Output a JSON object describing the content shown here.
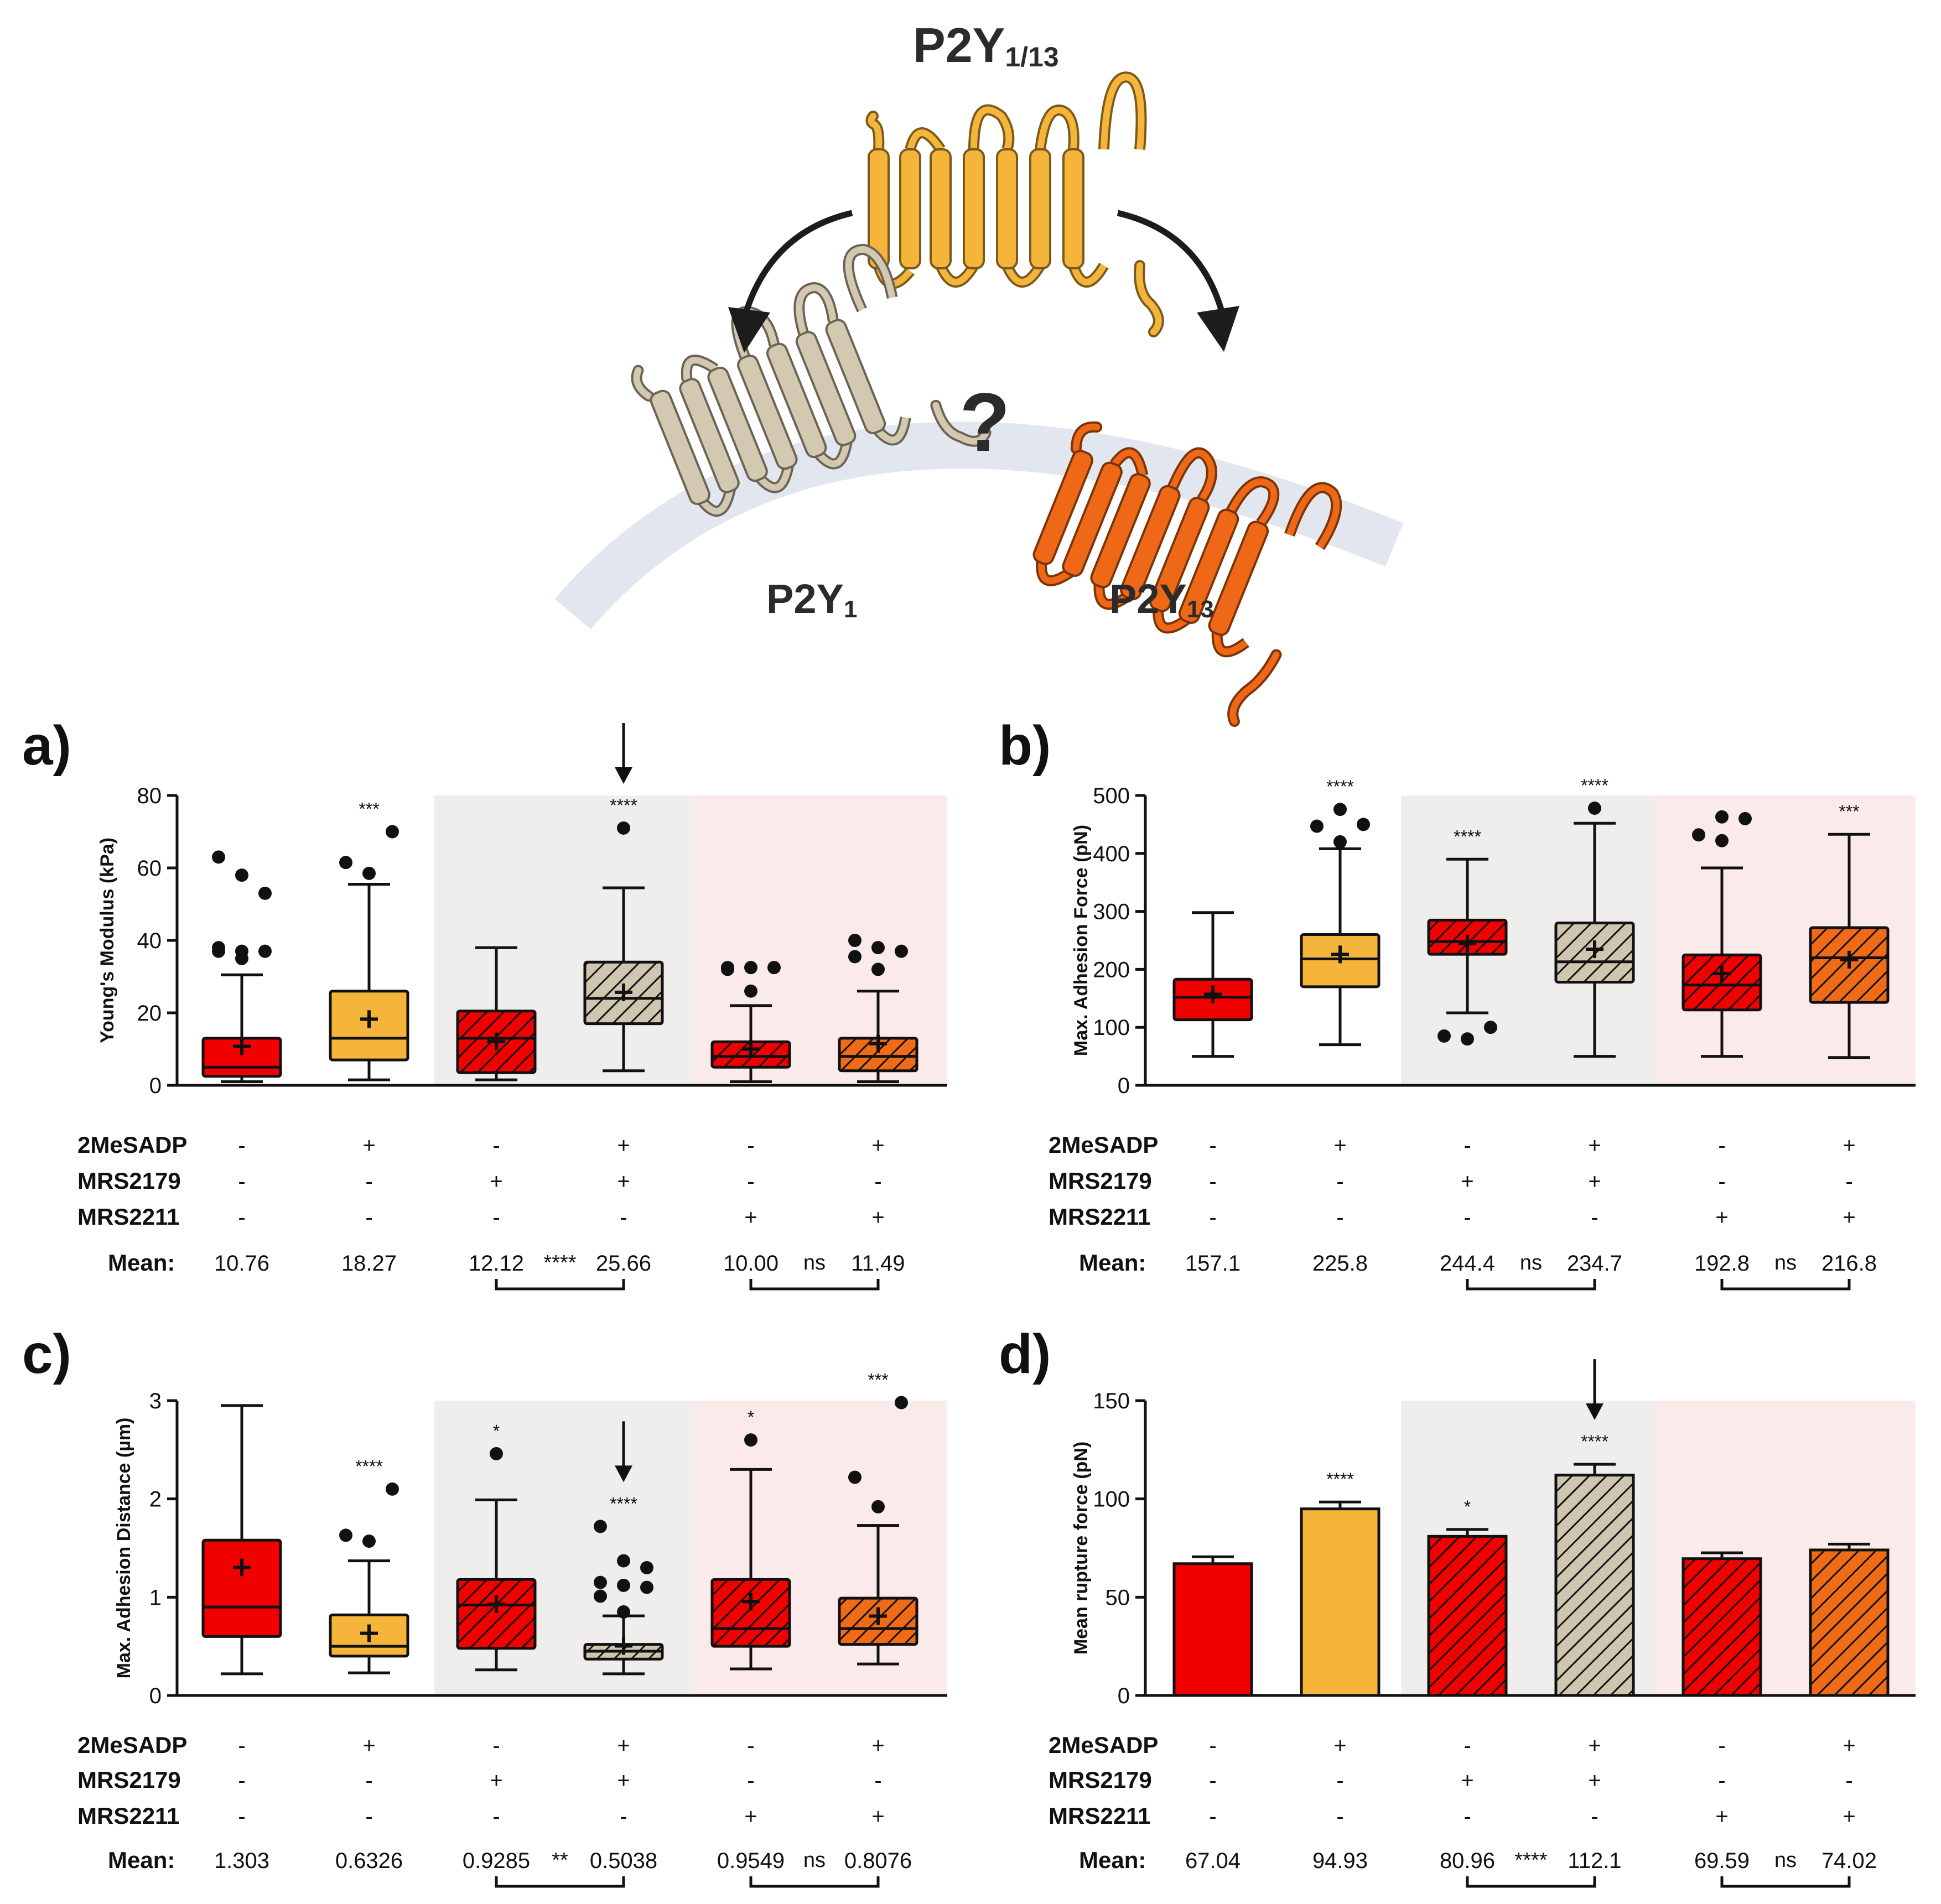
{
  "schematic": {
    "top_label": "P2Y",
    "top_sub": "1/13",
    "left_label": "P2Y",
    "left_sub": "1",
    "right_label": "P2Y",
    "right_sub": "13",
    "question": "?"
  },
  "colors": {
    "red": "#f20000",
    "yellow": "#f5b53b",
    "beige": "#cfc6b0",
    "orange": "#ef6b18",
    "shade_grey": "#efeeec",
    "shade_pink": "#fbeaea",
    "membrane": "#e2e7ef",
    "p2y_top": "#f5b53b",
    "p2y1": "#d3c9b1",
    "p2y13": "#ee6818"
  },
  "conditions": {
    "row_labels": [
      "2MeSADP",
      "MRS2179",
      "MRS2211"
    ],
    "values": [
      [
        "-",
        "+",
        "-",
        "+",
        "-",
        "+"
      ],
      [
        "-",
        "-",
        "+",
        "+",
        "-",
        "-"
      ],
      [
        "-",
        "-",
        "-",
        "-",
        "+",
        "+"
      ]
    ],
    "mean_label": "Mean:"
  },
  "chart_data": [
    {
      "panel": "a)",
      "type": "box",
      "ylabel": "Young's  Modulus  (kPa)",
      "ylim": [
        0,
        80
      ],
      "yticks": [
        0,
        20,
        40,
        60,
        80
      ],
      "fills": [
        "red",
        "yellow",
        "red",
        "beige",
        "red",
        "orange"
      ],
      "hatched": [
        false,
        false,
        true,
        true,
        true,
        true
      ],
      "boxes": [
        {
          "min": 1,
          "q1": 2.5,
          "median": 5,
          "q3": 13,
          "max": 30.5,
          "mean": 10.76,
          "outliers": [
            35,
            37,
            37,
            37,
            38,
            53,
            58,
            63
          ]
        },
        {
          "min": 1.5,
          "q1": 7,
          "median": 13,
          "q3": 26,
          "max": 55.5,
          "mean": 18.27,
          "outliers": [
            58.5,
            61.5,
            70
          ]
        },
        {
          "min": 1.5,
          "q1": 3.5,
          "median": 13,
          "q3": 20.5,
          "max": 38,
          "mean": 12.12,
          "outliers": []
        },
        {
          "min": 4,
          "q1": 17,
          "median": 24,
          "q3": 34,
          "max": 54.5,
          "mean": 25.66,
          "outliers": [
            71
          ]
        },
        {
          "min": 1,
          "q1": 5,
          "median": 8,
          "q3": 12,
          "max": 22,
          "mean": 10.0,
          "outliers": [
            26,
            32,
            32.5,
            32.5,
            32.5
          ]
        },
        {
          "min": 1,
          "q1": 4,
          "median": 8,
          "q3": 13,
          "max": 26,
          "mean": 11.49,
          "outliers": [
            32,
            35.5,
            37,
            38,
            40
          ]
        }
      ],
      "significance": [
        "",
        "***",
        "",
        "****",
        "",
        ""
      ],
      "arrow_over": 3,
      "means": [
        "10.76",
        "18.27",
        "12.12",
        "25.66",
        "10.00",
        "11.49"
      ],
      "pair_stats": [
        "****",
        "ns"
      ]
    },
    {
      "panel": "b)",
      "type": "box",
      "ylabel": "Max. Adhesion Force  (pN)",
      "ylim": [
        0,
        500
      ],
      "yticks": [
        0,
        100,
        200,
        300,
        400,
        500
      ],
      "fills": [
        "red",
        "yellow",
        "red",
        "beige",
        "red",
        "orange"
      ],
      "hatched": [
        false,
        false,
        true,
        true,
        true,
        true
      ],
      "boxes": [
        {
          "min": 50,
          "q1": 113,
          "median": 152,
          "q3": 183,
          "max": 298,
          "mean": 157.1,
          "outliers": []
        },
        {
          "min": 70,
          "q1": 170,
          "median": 218,
          "q3": 260,
          "max": 408,
          "mean": 225.8,
          "outliers": [
            420,
            447,
            450,
            476
          ]
        },
        {
          "min": 125,
          "q1": 226,
          "median": 248,
          "q3": 285,
          "max": 390,
          "mean": 244.4,
          "outliers": [
            80,
            85,
            100
          ]
        },
        {
          "min": 50,
          "q1": 178,
          "median": 213,
          "q3": 280,
          "max": 452,
          "mean": 234.7,
          "outliers": [
            478
          ]
        },
        {
          "min": 50,
          "q1": 130,
          "median": 173,
          "q3": 225,
          "max": 375,
          "mean": 192.8,
          "outliers": [
            422,
            432,
            460,
            463
          ]
        },
        {
          "min": 48,
          "q1": 143,
          "median": 220,
          "q3": 272,
          "max": 433,
          "mean": 216.8,
          "outliers": []
        }
      ],
      "significance": [
        "",
        "****",
        "****",
        "****",
        "",
        "***"
      ],
      "arrow_over": null,
      "means": [
        "157.1",
        "225.8",
        "244.4",
        "234.7",
        "192.8",
        "216.8"
      ],
      "pair_stats": [
        "ns",
        "ns"
      ]
    },
    {
      "panel": "c)",
      "type": "box",
      "ylabel": "Max. Adhesion Distance  (µm)",
      "ylim": [
        0,
        3
      ],
      "yticks": [
        0,
        1,
        2,
        3
      ],
      "fills": [
        "red",
        "yellow",
        "red",
        "beige",
        "red",
        "orange"
      ],
      "hatched": [
        false,
        false,
        true,
        true,
        true,
        true
      ],
      "boxes": [
        {
          "min": 0.22,
          "q1": 0.6,
          "median": 0.9,
          "q3": 1.58,
          "max": 2.95,
          "mean": 1.303,
          "outliers": []
        },
        {
          "min": 0.23,
          "q1": 0.4,
          "median": 0.5,
          "q3": 0.82,
          "max": 1.37,
          "mean": 0.6326,
          "outliers": [
            1.57,
            1.63,
            2.1
          ]
        },
        {
          "min": 0.26,
          "q1": 0.48,
          "median": 0.92,
          "q3": 1.18,
          "max": 1.99,
          "mean": 0.9285,
          "outliers": [
            2.46
          ]
        },
        {
          "min": 0.22,
          "q1": 0.37,
          "median": 0.45,
          "q3": 0.52,
          "max": 0.81,
          "mean": 0.5038,
          "outliers": [
            0.85,
            1.01,
            1.1,
            1.12,
            1.15,
            1.3,
            1.37,
            1.72
          ]
        },
        {
          "min": 0.27,
          "q1": 0.5,
          "median": 0.68,
          "q3": 1.18,
          "max": 2.3,
          "mean": 0.9549,
          "outliers": [
            2.6
          ]
        },
        {
          "min": 0.32,
          "q1": 0.52,
          "median": 0.68,
          "q3": 0.99,
          "max": 1.73,
          "mean": 0.8076,
          "outliers": [
            1.92,
            2.22,
            2.98
          ]
        }
      ],
      "significance": [
        "",
        "****",
        "*",
        "****",
        "*",
        "***"
      ],
      "arrow_over": 3,
      "means": [
        "1.303",
        "0.6326",
        "0.9285",
        "0.5038",
        "0.9549",
        "0.8076"
      ],
      "pair_stats": [
        "**",
        "ns"
      ]
    },
    {
      "panel": "d)",
      "type": "bar",
      "ylabel": "Mean rupture force (pN)",
      "ylim": [
        0,
        150
      ],
      "yticks": [
        0,
        50,
        100,
        150
      ],
      "fills": [
        "red",
        "yellow",
        "red",
        "beige",
        "red",
        "orange"
      ],
      "hatched": [
        false,
        false,
        true,
        true,
        true,
        true
      ],
      "values": [
        67.04,
        94.93,
        80.96,
        112.1,
        69.59,
        74.02
      ],
      "errors": [
        3.5,
        3.5,
        3.5,
        5.5,
        3.0,
        3.0
      ],
      "significance": [
        "",
        "****",
        "*",
        "****",
        "",
        ""
      ],
      "arrow_over": 3,
      "means": [
        "67.04",
        "94.93",
        "80.96",
        "112.1",
        "69.59",
        "74.02"
      ],
      "pair_stats": [
        "****",
        "ns"
      ]
    }
  ]
}
